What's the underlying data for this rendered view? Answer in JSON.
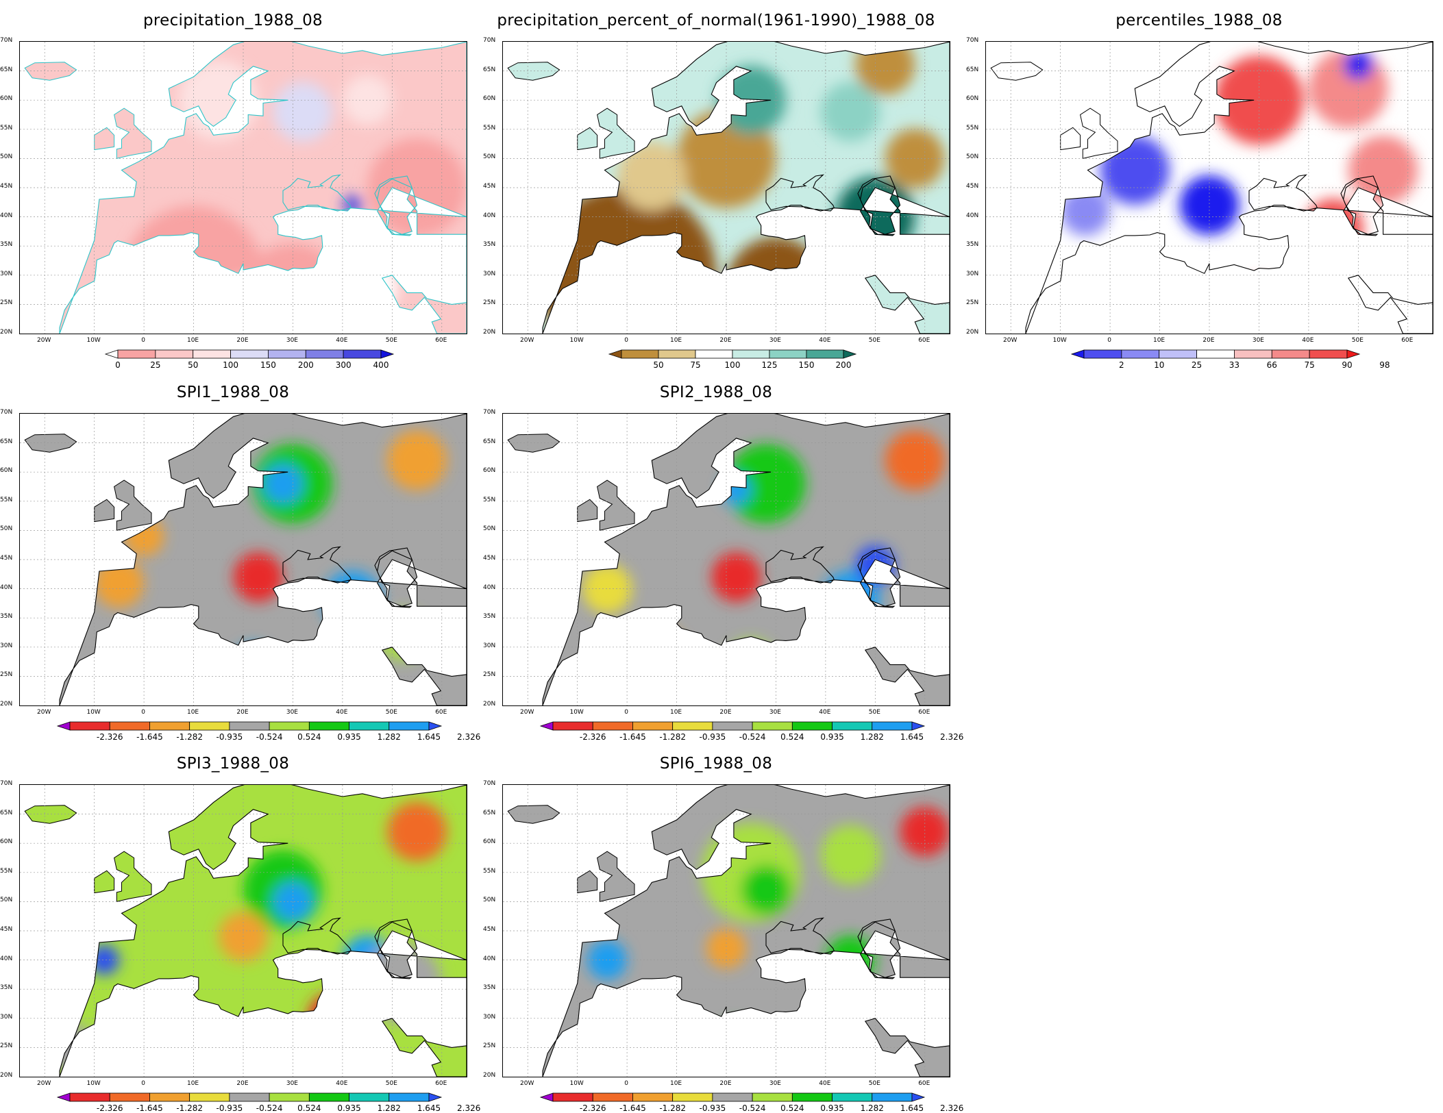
{
  "map_extent": {
    "lon": [
      -25,
      65
    ],
    "lat": [
      20,
      70
    ]
  },
  "lat_ticks": [
    "70N",
    "65N",
    "60N",
    "55N",
    "50N",
    "45N",
    "40N",
    "35N",
    "30N",
    "25N",
    "20N"
  ],
  "lon_ticks": [
    "20W",
    "10W",
    "0",
    "10E",
    "20E",
    "30E",
    "40E",
    "50E",
    "60E"
  ],
  "scales": {
    "precip": {
      "colors": [
        "#ffffff",
        "#f8a3a3",
        "#fbc8c8",
        "#fde3e3",
        "#dcdcf6",
        "#b3b3f0",
        "#7f7fe6",
        "#4848e0",
        "#1414dd"
      ],
      "labels": [
        "0",
        "25",
        "50",
        "100",
        "150",
        "200",
        "300",
        "400"
      ]
    },
    "pct": {
      "colors": [
        "#8c5414",
        "#bf8f3c",
        "#e0c88c",
        "#ffffff",
        "#c8ece4",
        "#8cd2c4",
        "#4aa796",
        "#0f6b5c"
      ],
      "labels": [
        "50",
        "75",
        "100",
        "125",
        "150",
        "200"
      ]
    },
    "perc": {
      "colors": [
        "#1a1aee",
        "#4e4ef0",
        "#8a8af4",
        "#c0c0f8",
        "#ffffff",
        "#f8c0c0",
        "#f48a8a",
        "#f04e4e",
        "#ee1a1a"
      ],
      "labels": [
        "2",
        "10",
        "25",
        "33",
        "66",
        "75",
        "90",
        "98"
      ]
    },
    "spi": {
      "colors": [
        "#a000d0",
        "#e82c2c",
        "#f06a28",
        "#f0a030",
        "#e8dc3c",
        "#a6a6a6",
        "#a8e040",
        "#14c814",
        "#14c8b4",
        "#1e9ef0",
        "#2a50f0"
      ],
      "labels": [
        "-2.326",
        "-1.645",
        "-1.282",
        "-0.935",
        "-0.524",
        "0.524",
        "0.935",
        "1.282",
        "1.645",
        "2.326"
      ]
    }
  },
  "panels": [
    {
      "title": "precipitation_1988_08",
      "scale": "precip",
      "border": "#2cc4c8",
      "base": "#fbc8c8",
      "blobs": [
        {
          "lon": -22,
          "lat": 64,
          "r": 4,
          "c": "#f8a3a3"
        },
        {
          "lon": 15,
          "lat": 60,
          "r": 8,
          "c": "#fde3e3"
        },
        {
          "lon": 32,
          "lat": 58,
          "r": 6,
          "c": "#dcdcf6"
        },
        {
          "lon": 45,
          "lat": 60,
          "r": 5,
          "c": "#fde3e3"
        },
        {
          "lon": -8,
          "lat": 53,
          "r": 3,
          "c": "#b3b3f0"
        },
        {
          "lon": 42,
          "lat": 42,
          "r": 2,
          "c": "#4848e0"
        },
        {
          "lon": 10,
          "lat": 30,
          "r": 14,
          "c": "#f8a3a3"
        },
        {
          "lon": 30,
          "lat": 27,
          "r": 10,
          "c": "#f8a3a3"
        },
        {
          "lon": 0,
          "lat": 48,
          "r": 8,
          "c": "#fbc8c8"
        },
        {
          "lon": 55,
          "lat": 45,
          "r": 10,
          "c": "#f8a3a3"
        },
        {
          "lon": 20,
          "lat": 25,
          "r": 5,
          "c": "#ffffff"
        },
        {
          "lon": 45,
          "lat": 28,
          "r": 6,
          "c": "#ffffff"
        }
      ]
    },
    {
      "title": "precipitation_percent_of_normal(1961-1990)_1988_08",
      "scale": "pct",
      "border": "#000000",
      "base": "#c8ece4",
      "blobs": [
        {
          "lon": 0,
          "lat": 30,
          "r": 18,
          "c": "#8c5414"
        },
        {
          "lon": 30,
          "lat": 28,
          "r": 10,
          "c": "#8c5414"
        },
        {
          "lon": 20,
          "lat": 50,
          "r": 10,
          "c": "#bf8f3c"
        },
        {
          "lon": 5,
          "lat": 47,
          "r": 7,
          "c": "#e0c88c"
        },
        {
          "lon": 50,
          "lat": 40,
          "r": 8,
          "c": "#0f6b5c"
        },
        {
          "lon": 35,
          "lat": 24,
          "r": 4,
          "c": "#0f6b5c"
        },
        {
          "lon": 25,
          "lat": 60,
          "r": 7,
          "c": "#4aa796"
        },
        {
          "lon": 45,
          "lat": 58,
          "r": 6,
          "c": "#8cd2c4"
        },
        {
          "lon": 58,
          "lat": 50,
          "r": 6,
          "c": "#bf8f3c"
        },
        {
          "lon": 52,
          "lat": 66,
          "r": 6,
          "c": "#bf8f3c"
        },
        {
          "lon": -9,
          "lat": 53,
          "r": 3,
          "c": "#4aa796"
        },
        {
          "lon": 20,
          "lat": 25,
          "r": 4,
          "c": "#ffffff"
        }
      ]
    },
    {
      "title": "percentiles_1988_08",
      "scale": "perc",
      "border": "#000000",
      "base": "#ffffff",
      "blobs": [
        {
          "lon": 30,
          "lat": 60,
          "r": 9,
          "c": "#f04e4e"
        },
        {
          "lon": 48,
          "lat": 62,
          "r": 8,
          "c": "#f48a8a"
        },
        {
          "lon": 55,
          "lat": 48,
          "r": 7,
          "c": "#f48a8a"
        },
        {
          "lon": 45,
          "lat": 38,
          "r": 6,
          "c": "#f04e4e"
        },
        {
          "lon": 5,
          "lat": 48,
          "r": 7,
          "c": "#4e4ef0"
        },
        {
          "lon": 20,
          "lat": 42,
          "r": 6,
          "c": "#1a1aee"
        },
        {
          "lon": -5,
          "lat": 41,
          "r": 5,
          "c": "#8a8af4"
        },
        {
          "lon": 30,
          "lat": 25,
          "r": 5,
          "c": "#ee1a1a"
        },
        {
          "lon": 15,
          "lat": 22,
          "r": 4,
          "c": "#f04e4e"
        },
        {
          "lon": 50,
          "lat": 66,
          "r": 3,
          "c": "#1a1aee"
        },
        {
          "lon": -8,
          "lat": 54,
          "r": 3,
          "c": "#f04e4e"
        },
        {
          "lon": -20,
          "lat": 65,
          "r": 2,
          "c": "#f04e4e"
        }
      ]
    },
    {
      "title": "SPI1_1988_08",
      "scale": "spi",
      "border": "#000000",
      "base": "#a6a6a6",
      "blobs": [
        {
          "lon": 30,
          "lat": 58,
          "r": 8,
          "c": "#14c814"
        },
        {
          "lon": 28,
          "lat": 58,
          "r": 4,
          "c": "#1e9ef0"
        },
        {
          "lon": 55,
          "lat": 62,
          "r": 6,
          "c": "#f0a030"
        },
        {
          "lon": 23,
          "lat": 42,
          "r": 5,
          "c": "#e82c2c"
        },
        {
          "lon": -5,
          "lat": 41,
          "r": 5,
          "c": "#f0a030"
        },
        {
          "lon": 42,
          "lat": 38,
          "r": 6,
          "c": "#1e9ef0"
        },
        {
          "lon": 5,
          "lat": 28,
          "r": 6,
          "c": "#e8dc3c"
        },
        {
          "lon": 12,
          "lat": 24,
          "r": 3,
          "c": "#e82c2c"
        },
        {
          "lon": 0,
          "lat": 49,
          "r": 4,
          "c": "#f0a030"
        },
        {
          "lon": 22,
          "lat": 27,
          "r": 4,
          "c": "#1e9ef0"
        },
        {
          "lon": -9,
          "lat": 54,
          "r": 3,
          "c": "#14c814"
        },
        {
          "lon": 52,
          "lat": 32,
          "r": 5,
          "c": "#a8e040"
        }
      ]
    },
    {
      "title": "SPI2_1988_08",
      "scale": "spi",
      "border": "#000000",
      "base": "#a6a6a6",
      "blobs": [
        {
          "lon": 28,
          "lat": 58,
          "r": 8,
          "c": "#14c814"
        },
        {
          "lon": 22,
          "lat": 57,
          "r": 3,
          "c": "#1e9ef0"
        },
        {
          "lon": -8,
          "lat": 54,
          "r": 3,
          "c": "#1e9ef0"
        },
        {
          "lon": 58,
          "lat": 62,
          "r": 6,
          "c": "#f06a28"
        },
        {
          "lon": 22,
          "lat": 42,
          "r": 5,
          "c": "#e82c2c"
        },
        {
          "lon": 45,
          "lat": 38,
          "r": 6,
          "c": "#1e9ef0"
        },
        {
          "lon": 50,
          "lat": 44,
          "r": 4,
          "c": "#2a50f0"
        },
        {
          "lon": 5,
          "lat": 28,
          "r": 7,
          "c": "#f0a030"
        },
        {
          "lon": 12,
          "lat": 23,
          "r": 3,
          "c": "#e82c2c"
        },
        {
          "lon": -4,
          "lat": 40,
          "r": 5,
          "c": "#e8dc3c"
        },
        {
          "lon": 25,
          "lat": 27,
          "r": 5,
          "c": "#a8e040"
        }
      ]
    },
    {
      "title": "SPI3_1988_08",
      "scale": "spi",
      "border": "#000000",
      "base": "#a8e040",
      "blobs": [
        {
          "lon": 28,
          "lat": 52,
          "r": 8,
          "c": "#14c814"
        },
        {
          "lon": 30,
          "lat": 50,
          "r": 4,
          "c": "#1e9ef0"
        },
        {
          "lon": 55,
          "lat": 62,
          "r": 6,
          "c": "#f06a28"
        },
        {
          "lon": 20,
          "lat": 44,
          "r": 5,
          "c": "#f0a030"
        },
        {
          "lon": 45,
          "lat": 40,
          "r": 5,
          "c": "#1e9ef0"
        },
        {
          "lon": 5,
          "lat": 26,
          "r": 7,
          "c": "#f0a030"
        },
        {
          "lon": 10,
          "lat": 25,
          "r": 3,
          "c": "#e82c2c"
        },
        {
          "lon": 38,
          "lat": 30,
          "r": 5,
          "c": "#e82c2c"
        },
        {
          "lon": -8,
          "lat": 40,
          "r": 3,
          "c": "#2a50f0"
        },
        {
          "lon": 52,
          "lat": 36,
          "r": 8,
          "c": "#a6a6a6"
        },
        {
          "lon": -15,
          "lat": 25,
          "r": 5,
          "c": "#a6a6a6"
        }
      ]
    },
    {
      "title": "SPI6_1988_08",
      "scale": "spi",
      "border": "#000000",
      "base": "#a6a6a6",
      "blobs": [
        {
          "lon": 25,
          "lat": 55,
          "r": 10,
          "c": "#a8e040"
        },
        {
          "lon": 28,
          "lat": 52,
          "r": 5,
          "c": "#14c814"
        },
        {
          "lon": 60,
          "lat": 62,
          "r": 5,
          "c": "#e82c2c"
        },
        {
          "lon": 20,
          "lat": 42,
          "r": 4,
          "c": "#f0a030"
        },
        {
          "lon": 45,
          "lat": 40,
          "r": 5,
          "c": "#14c814"
        },
        {
          "lon": 10,
          "lat": 24,
          "r": 5,
          "c": "#1e9ef0"
        },
        {
          "lon": 22,
          "lat": 26,
          "r": 4,
          "c": "#14c814"
        },
        {
          "lon": 35,
          "lat": 25,
          "r": 3,
          "c": "#f06a28"
        },
        {
          "lon": -4,
          "lat": 40,
          "r": 4,
          "c": "#1e9ef0"
        },
        {
          "lon": 45,
          "lat": 58,
          "r": 6,
          "c": "#a8e040"
        }
      ]
    }
  ]
}
